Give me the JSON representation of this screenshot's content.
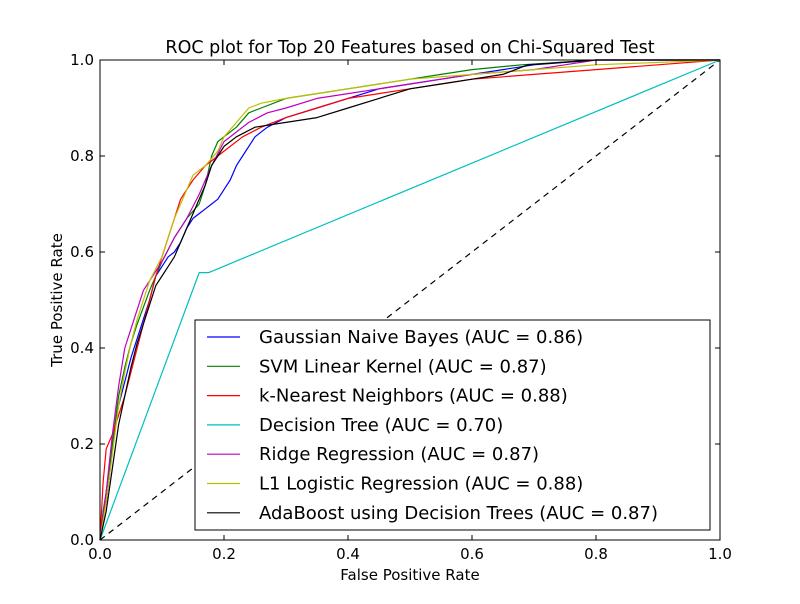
{
  "chart_data": {
    "type": "line",
    "title": "ROC plot for Top 20 Features based on Chi-Squared Test",
    "xlabel": "False Positive Rate",
    "ylabel": "True Positive Rate",
    "xlim": [
      0.0,
      1.0
    ],
    "ylim": [
      0.0,
      1.0
    ],
    "xticks": [
      "0.0",
      "0.2",
      "0.4",
      "0.6",
      "0.8",
      "1.0"
    ],
    "yticks": [
      "0.0",
      "0.2",
      "0.4",
      "0.6",
      "0.8",
      "1.0"
    ],
    "grid": false,
    "legend_position": "lower-right",
    "reference_line": {
      "x": [
        0,
        1
      ],
      "y": [
        0,
        1
      ],
      "style": "dashed",
      "color": "#000000"
    },
    "series": [
      {
        "name": "Gaussian Naive Bayes  (AUC = 0.86)",
        "color": "#0000ff",
        "x": [
          0.0,
          0.005,
          0.01,
          0.015,
          0.02,
          0.03,
          0.04,
          0.05,
          0.06,
          0.07,
          0.08,
          0.09,
          0.1,
          0.11,
          0.12,
          0.13,
          0.14,
          0.15,
          0.16,
          0.17,
          0.18,
          0.19,
          0.2,
          0.21,
          0.22,
          0.23,
          0.24,
          0.25,
          0.27,
          0.3,
          0.35,
          0.4,
          0.45,
          0.5,
          0.55,
          0.6,
          0.65,
          0.7,
          0.8,
          1.0
        ],
        "y": [
          0.0,
          0.05,
          0.08,
          0.13,
          0.2,
          0.28,
          0.33,
          0.38,
          0.42,
          0.46,
          0.5,
          0.55,
          0.57,
          0.59,
          0.6,
          0.62,
          0.65,
          0.67,
          0.68,
          0.69,
          0.7,
          0.71,
          0.73,
          0.75,
          0.78,
          0.8,
          0.82,
          0.84,
          0.86,
          0.88,
          0.9,
          0.92,
          0.94,
          0.95,
          0.96,
          0.97,
          0.98,
          0.99,
          1.0,
          1.0
        ]
      },
      {
        "name": "SVM Linear Kernel  (AUC = 0.87)",
        "color": "#008000",
        "x": [
          0.0,
          0.005,
          0.01,
          0.02,
          0.03,
          0.04,
          0.05,
          0.06,
          0.08,
          0.1,
          0.12,
          0.14,
          0.16,
          0.17,
          0.18,
          0.19,
          0.2,
          0.22,
          0.24,
          0.26,
          0.3,
          0.35,
          0.4,
          0.45,
          0.5,
          0.55,
          0.6,
          0.68,
          0.8,
          1.0
        ],
        "y": [
          0.0,
          0.06,
          0.1,
          0.2,
          0.3,
          0.36,
          0.41,
          0.45,
          0.52,
          0.58,
          0.63,
          0.67,
          0.7,
          0.74,
          0.8,
          0.83,
          0.84,
          0.86,
          0.89,
          0.9,
          0.92,
          0.93,
          0.94,
          0.95,
          0.96,
          0.97,
          0.98,
          0.99,
          1.0,
          1.0
        ]
      },
      {
        "name": "k-Nearest Neighbors  (AUC = 0.88)",
        "color": "#ff0000",
        "x": [
          0.0,
          0.005,
          0.01,
          0.02,
          0.03,
          0.04,
          0.05,
          0.06,
          0.07,
          0.08,
          0.09,
          0.1,
          0.11,
          0.12,
          0.13,
          0.14,
          0.15,
          0.17,
          0.19,
          0.21,
          0.23,
          0.26,
          0.3,
          0.35,
          0.4,
          0.45,
          0.5,
          0.55,
          0.6,
          0.65,
          0.7,
          0.8,
          0.9,
          1.0
        ],
        "y": [
          0.0,
          0.12,
          0.19,
          0.22,
          0.26,
          0.3,
          0.35,
          0.4,
          0.45,
          0.5,
          0.55,
          0.59,
          0.63,
          0.67,
          0.71,
          0.73,
          0.75,
          0.78,
          0.8,
          0.82,
          0.84,
          0.86,
          0.88,
          0.9,
          0.92,
          0.93,
          0.94,
          0.95,
          0.96,
          0.965,
          0.97,
          0.98,
          0.99,
          1.0
        ]
      },
      {
        "name": "Decision Tree  (AUC = 0.70)",
        "color": "#00bfbf",
        "x": [
          0.0,
          0.16,
          0.175,
          1.0
        ],
        "y": [
          0.0,
          0.557,
          0.557,
          1.0
        ]
      },
      {
        "name": "Ridge Regression  (AUC = 0.87)",
        "color": "#bf00bf",
        "x": [
          0.0,
          0.005,
          0.01,
          0.02,
          0.03,
          0.04,
          0.05,
          0.06,
          0.07,
          0.08,
          0.1,
          0.12,
          0.14,
          0.16,
          0.18,
          0.2,
          0.22,
          0.24,
          0.27,
          0.3,
          0.35,
          0.4,
          0.45,
          0.5,
          0.55,
          0.6,
          0.7,
          0.75,
          0.8,
          1.0
        ],
        "y": [
          0.0,
          0.05,
          0.1,
          0.22,
          0.32,
          0.4,
          0.44,
          0.48,
          0.52,
          0.54,
          0.58,
          0.63,
          0.67,
          0.72,
          0.78,
          0.83,
          0.85,
          0.87,
          0.89,
          0.9,
          0.92,
          0.93,
          0.94,
          0.95,
          0.96,
          0.97,
          0.98,
          0.99,
          1.0,
          1.0
        ]
      },
      {
        "name": "L1 Logistic Regression (AUC = 0.88)",
        "color": "#bfbf00",
        "x": [
          0.0,
          0.005,
          0.01,
          0.02,
          0.03,
          0.04,
          0.05,
          0.06,
          0.07,
          0.08,
          0.1,
          0.11,
          0.12,
          0.13,
          0.14,
          0.15,
          0.17,
          0.19,
          0.2,
          0.22,
          0.24,
          0.26,
          0.3,
          0.35,
          0.4,
          0.45,
          0.5,
          0.6,
          0.7,
          0.8,
          1.0
        ],
        "y": [
          0.0,
          0.04,
          0.08,
          0.18,
          0.28,
          0.35,
          0.41,
          0.46,
          0.5,
          0.54,
          0.59,
          0.63,
          0.67,
          0.7,
          0.73,
          0.76,
          0.78,
          0.81,
          0.84,
          0.87,
          0.9,
          0.91,
          0.92,
          0.93,
          0.94,
          0.95,
          0.96,
          0.97,
          0.98,
          0.99,
          1.0
        ]
      },
      {
        "name": "AdaBoost using Decision Trees (AUC = 0.87)",
        "color": "#000000",
        "x": [
          0.0,
          0.005,
          0.01,
          0.02,
          0.03,
          0.04,
          0.05,
          0.06,
          0.07,
          0.08,
          0.09,
          0.1,
          0.11,
          0.12,
          0.13,
          0.14,
          0.15,
          0.16,
          0.17,
          0.18,
          0.19,
          0.2,
          0.22,
          0.25,
          0.3,
          0.35,
          0.4,
          0.45,
          0.5,
          0.55,
          0.6,
          0.65,
          0.69,
          0.8,
          1.0
        ],
        "y": [
          0.0,
          0.03,
          0.06,
          0.15,
          0.24,
          0.3,
          0.36,
          0.41,
          0.45,
          0.49,
          0.53,
          0.55,
          0.57,
          0.59,
          0.62,
          0.65,
          0.68,
          0.71,
          0.74,
          0.78,
          0.8,
          0.82,
          0.84,
          0.86,
          0.87,
          0.88,
          0.9,
          0.92,
          0.94,
          0.95,
          0.96,
          0.97,
          0.99,
          1.0,
          1.0
        ]
      }
    ]
  }
}
